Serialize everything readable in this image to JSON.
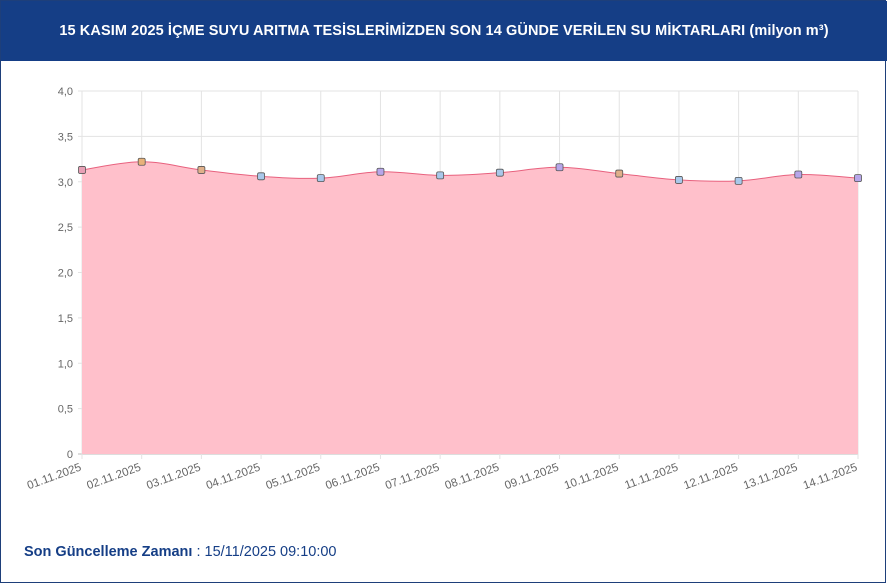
{
  "header": {
    "title": "15 KASIM 2025 İÇME SUYU ARITMA TESİSLERİMİZDEN SON 14 GÜNDE VERİLEN SU MİKTARLARI (milyon m³)"
  },
  "footer": {
    "label": "Son Güncelleme Zamanı",
    "separator": " : ",
    "value": "15/11/2025 09:10:00"
  },
  "chart_data": {
    "type": "area",
    "categories": [
      "01.11.2025",
      "02.11.2025",
      "03.11.2025",
      "04.11.2025",
      "05.11.2025",
      "06.11.2025",
      "07.11.2025",
      "08.11.2025",
      "09.11.2025",
      "10.11.2025",
      "11.11.2025",
      "12.11.2025",
      "13.11.2025",
      "14.11.2025"
    ],
    "values": [
      3.13,
      3.22,
      3.13,
      3.06,
      3.04,
      3.11,
      3.07,
      3.1,
      3.16,
      3.09,
      3.02,
      3.01,
      3.08,
      3.04
    ],
    "yticks": [
      "0",
      "0,5",
      "1,0",
      "1,5",
      "2,0",
      "2,5",
      "3,0",
      "3,5",
      "4,0"
    ],
    "ylim": [
      0,
      4
    ],
    "grid": true,
    "colors": {
      "fill": "#ffc0cb",
      "line": "#e8617e",
      "header": "#153e86"
    },
    "marker_colors": [
      "#e8a0b6",
      "#e8b27a",
      "#e0b08a",
      "#a9c8ea",
      "#a9c8ea",
      "#b7a6ea",
      "#a9c8ea",
      "#a9c8ea",
      "#b7a6ea",
      "#e0b08a",
      "#a9c8ea",
      "#a9c8ea",
      "#b7a6ea",
      "#b7a6ea"
    ]
  }
}
